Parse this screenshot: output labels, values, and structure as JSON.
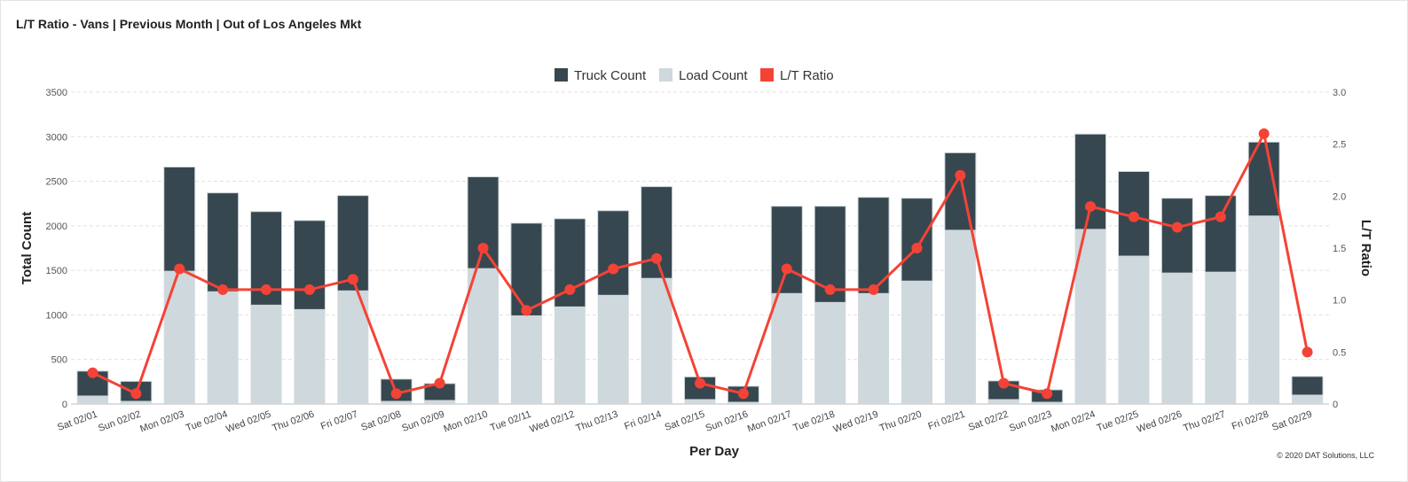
{
  "title": "L/T Ratio - Vans | Previous Month | Out of Los Angeles Mkt",
  "copyright": "© 2020 DAT Solutions, LLC",
  "chart_data": {
    "type": "bar",
    "stacked": true,
    "xlabel": "Per Day",
    "ylabel": "Total Count",
    "y2label": "L/T Ratio",
    "ylim": [
      0,
      3500
    ],
    "y2lim": [
      0,
      3.0
    ],
    "yticks": [
      "0",
      "500",
      "1000",
      "1500",
      "2000",
      "2500",
      "3000",
      "3500"
    ],
    "y2ticks": [
      "0",
      "0.5",
      "1.0",
      "1.5",
      "2.0",
      "2.5",
      "3.0"
    ],
    "grid": true,
    "legend_position": "top",
    "categories": [
      "Sat 02/01",
      "Sun 02/02",
      "Mon 02/03",
      "Tue 02/04",
      "Wed 02/05",
      "Thu 02/06",
      "Fri 02/07",
      "Sat 02/08",
      "Sun 02/09",
      "Mon 02/10",
      "Tue 02/11",
      "Wed 02/12",
      "Thu 02/13",
      "Fri 02/14",
      "Sat 02/15",
      "Sun 02/16",
      "Mon 02/17",
      "Tue 02/18",
      "Wed 02/19",
      "Thu 02/20",
      "Fri 02/21",
      "Sat 02/22",
      "Sun 02/23",
      "Mon 02/24",
      "Tue 02/25",
      "Wed 02/26",
      "Thu 02/27",
      "Fri 02/28",
      "Sat 02/29"
    ],
    "series": [
      {
        "name": "Truck Count",
        "type": "bar",
        "color": "#37474f",
        "values": [
          280,
          225,
          1170,
          1110,
          1050,
          1000,
          1070,
          250,
          190,
          1030,
          1040,
          990,
          950,
          1030,
          255,
          180,
          980,
          1080,
          1080,
          930,
          870,
          210,
          140,
          1070,
          950,
          840,
          860,
          830,
          210
        ]
      },
      {
        "name": "Load Count",
        "type": "bar",
        "color": "#cfd8dc",
        "values": [
          90,
          30,
          1490,
          1260,
          1110,
          1060,
          1270,
          30,
          40,
          1520,
          990,
          1090,
          1220,
          1410,
          50,
          20,
          1240,
          1140,
          1240,
          1380,
          1950,
          50,
          20,
          1960,
          1660,
          1470,
          1480,
          2110,
          100
        ]
      },
      {
        "name": "L/T Ratio",
        "type": "line",
        "axis": "right",
        "color": "#f44336",
        "values": [
          0.3,
          0.1,
          1.3,
          1.1,
          1.1,
          1.1,
          1.2,
          0.1,
          0.2,
          1.5,
          0.9,
          1.1,
          1.3,
          1.4,
          0.2,
          0.1,
          1.3,
          1.1,
          1.1,
          1.5,
          2.2,
          0.2,
          0.1,
          1.9,
          1.8,
          1.7,
          1.8,
          2.6,
          0.5
        ]
      }
    ]
  }
}
